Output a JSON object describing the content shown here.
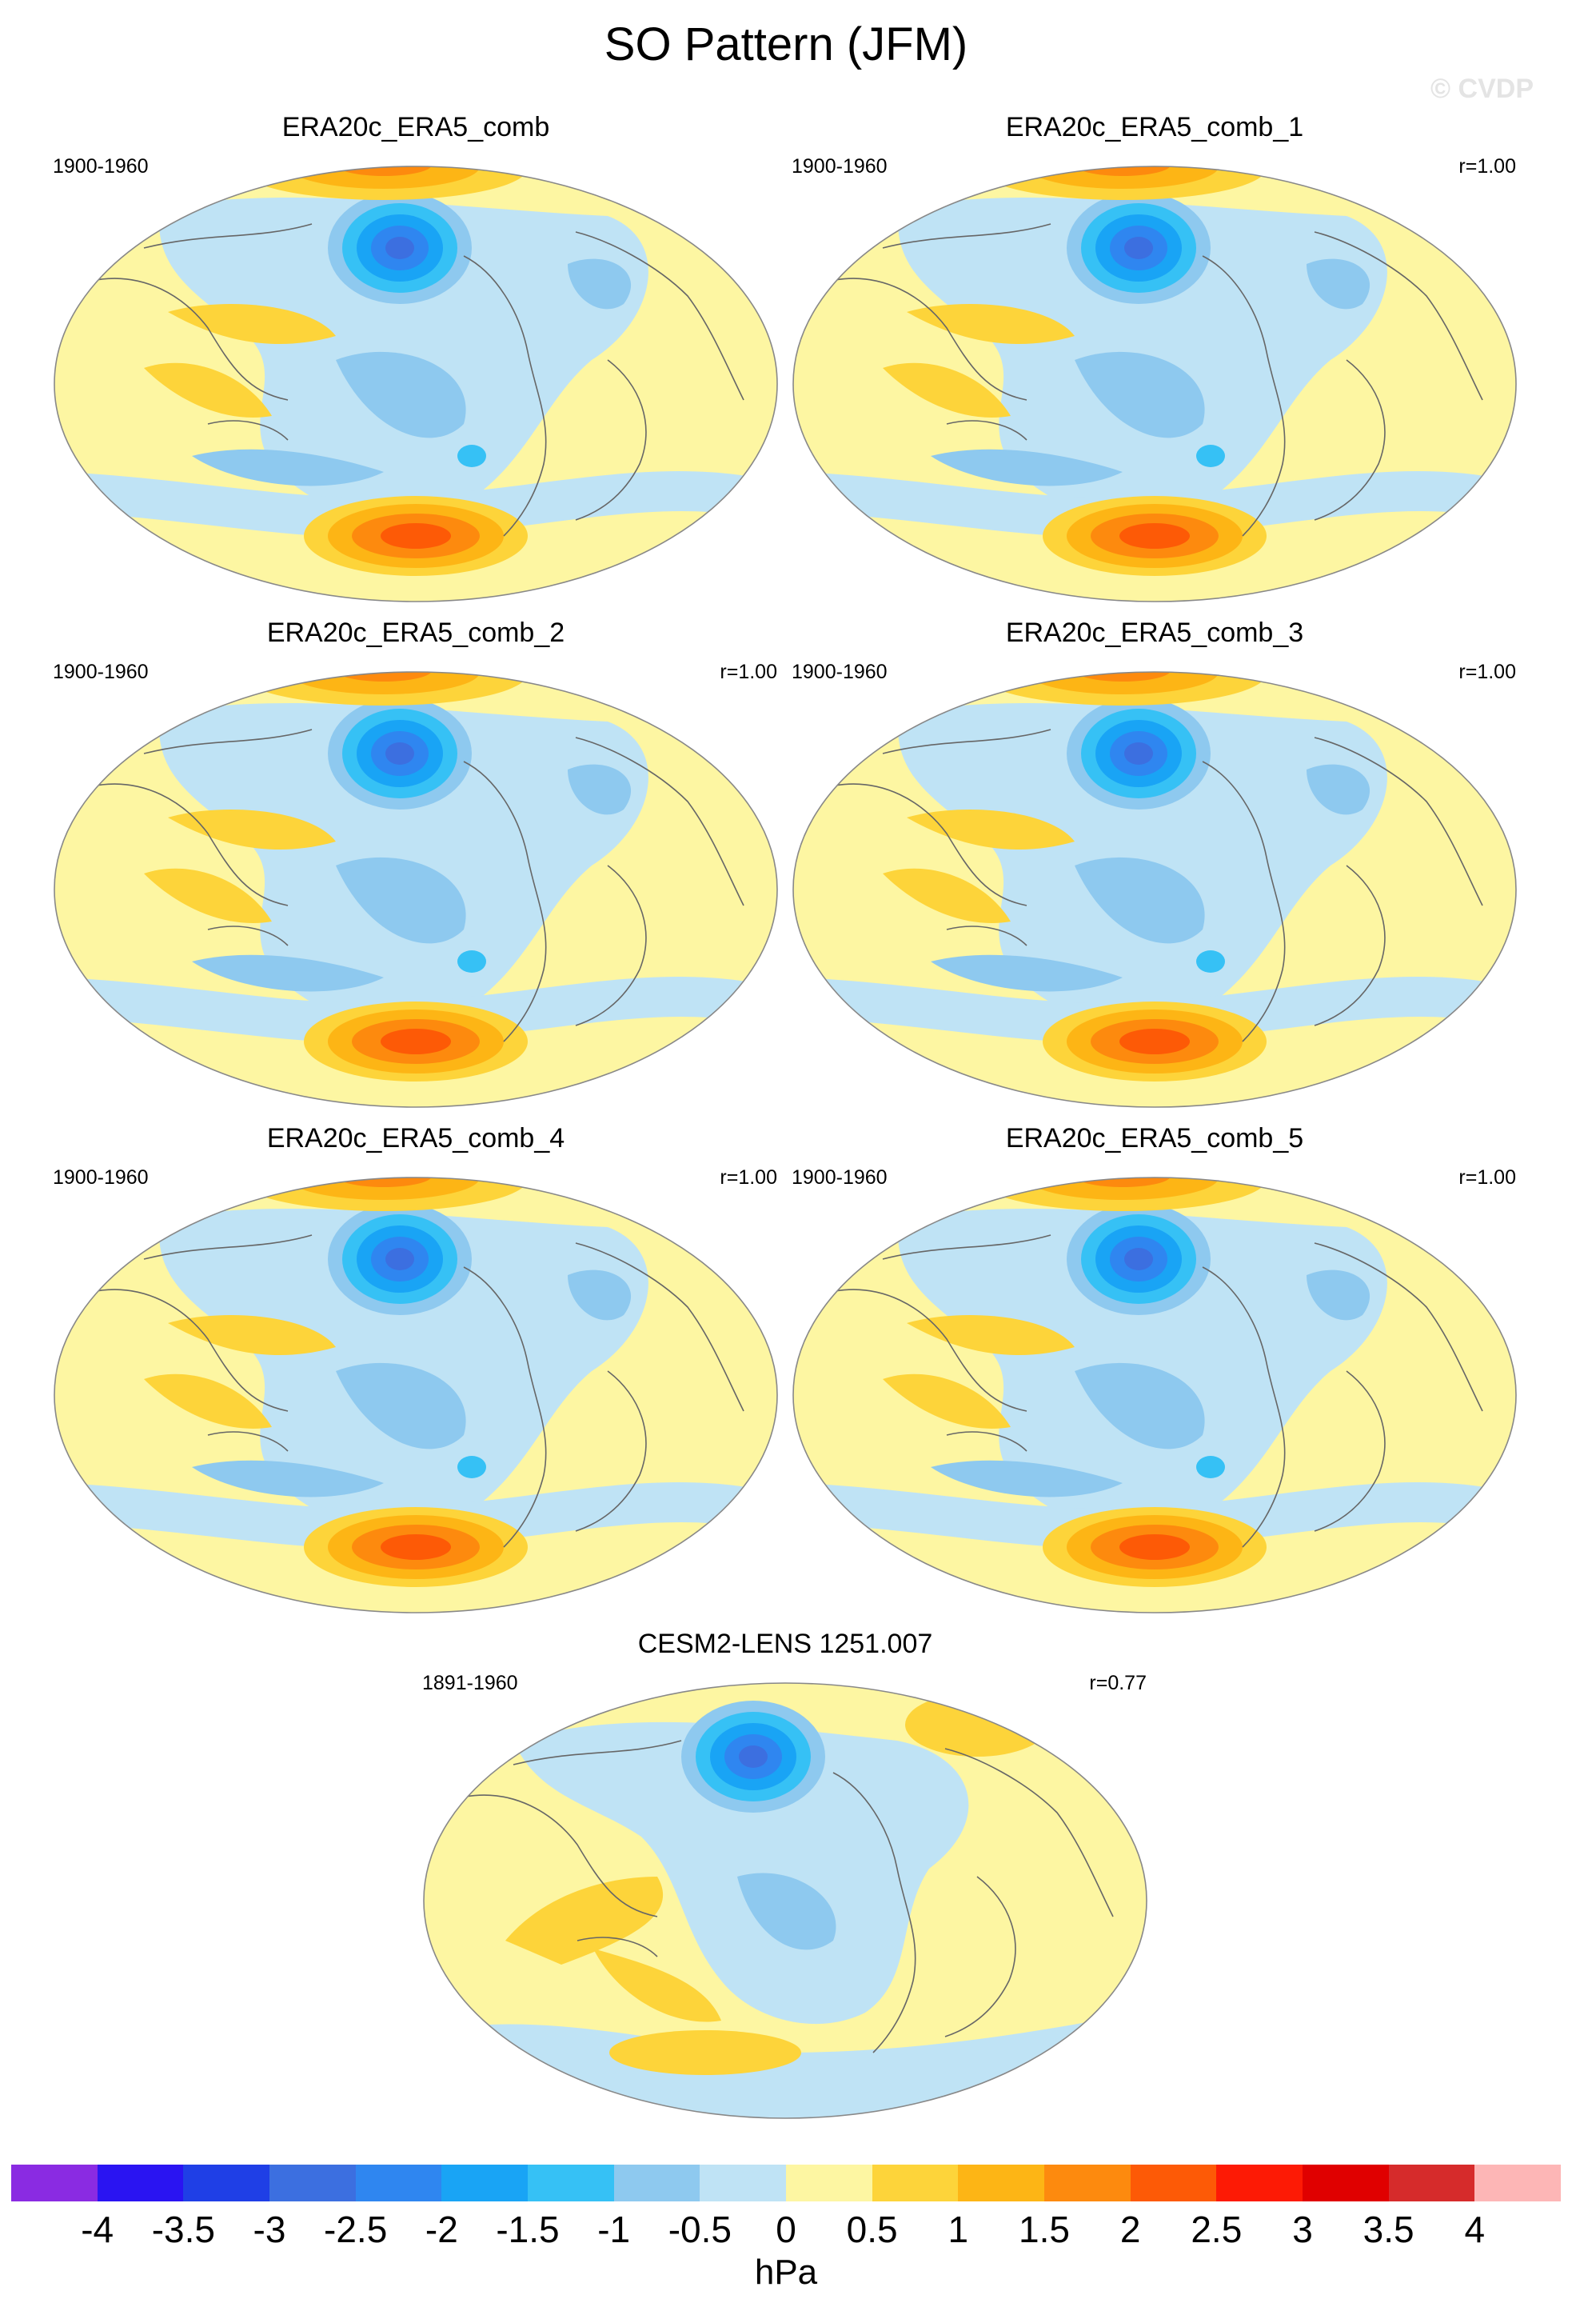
{
  "title": "SO Pattern (JFM)",
  "watermark": "© CVDP",
  "panels": [
    {
      "title": "ERA20c_ERA5_comb",
      "period": "1900-1960",
      "corr": ""
    },
    {
      "title": "ERA20c_ERA5_comb_1",
      "period": "1900-1960",
      "corr": "r=1.00"
    },
    {
      "title": "ERA20c_ERA5_comb_2",
      "period": "1900-1960",
      "corr": "r=1.00"
    },
    {
      "title": "ERA20c_ERA5_comb_3",
      "period": "1900-1960",
      "corr": "r=1.00"
    },
    {
      "title": "ERA20c_ERA5_comb_4",
      "period": "1900-1960",
      "corr": "r=1.00"
    },
    {
      "title": "ERA20c_ERA5_comb_5",
      "period": "1900-1960",
      "corr": "r=1.00"
    },
    {
      "title": "CESM2-LENS 1251.007",
      "period": "1891-1960",
      "corr": "r=0.77"
    }
  ],
  "colorbar": {
    "unit": "hPa",
    "ticks": [
      "-4",
      "-3.5",
      "-3",
      "-2.5",
      "-2",
      "-1.5",
      "-1",
      "-0.5",
      "0",
      "0.5",
      "1",
      "1.5",
      "2",
      "2.5",
      "3",
      "3.5",
      "4"
    ],
    "colors": [
      "#8a2be2",
      "#2a14f2",
      "#1f3fe6",
      "#3c6fe0",
      "#2f86f0",
      "#19a4f5",
      "#36c1f5",
      "#8ec9ef",
      "#bfe3f5",
      "#fdf6a2",
      "#fdd43a",
      "#fdb515",
      "#fd8a0e",
      "#fd5a06",
      "#fd1a05",
      "#e00000",
      "#d62b2b",
      "#fdb6b6"
    ]
  }
}
